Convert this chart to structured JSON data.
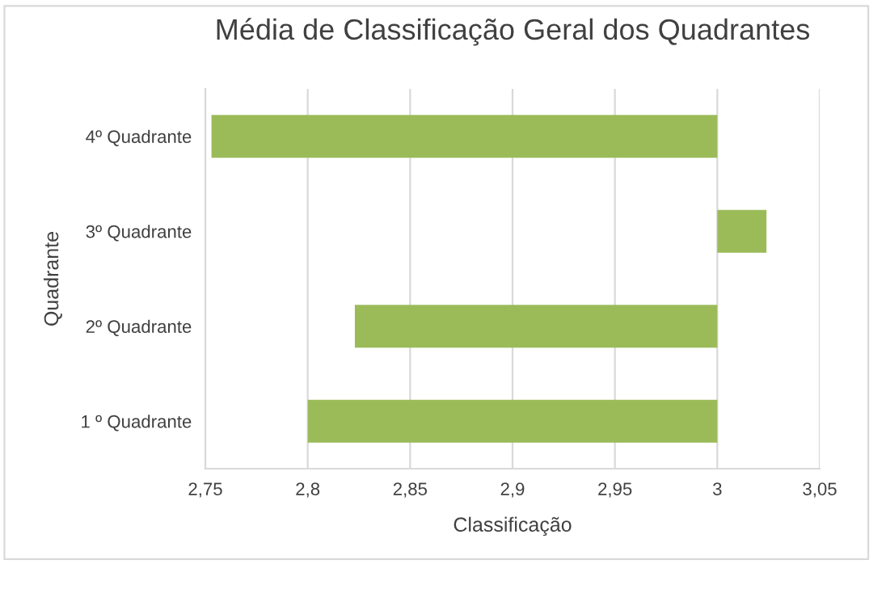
{
  "chart_data": {
    "type": "bar",
    "orientation": "horizontal",
    "title": "Média de Classificação Geral dos Quadrantes",
    "xlabel": "Classificação",
    "ylabel": "Quadrante",
    "categories": [
      "4º Quadrante",
      "3º Quadrante",
      "2º Quadrante",
      "1 º Quadrante"
    ],
    "base": [
      3,
      3,
      3,
      3
    ],
    "values": [
      -0.247,
      0.024,
      -0.177,
      -0.2
    ],
    "color": "#9bbb59",
    "xlim": [
      2.75,
      3.05
    ],
    "xticks": [
      {
        "value": 2.75,
        "label": "2,75"
      },
      {
        "value": 2.8,
        "label": "2,8"
      },
      {
        "value": 2.85,
        "label": "2,85"
      },
      {
        "value": 2.9,
        "label": "2,9"
      },
      {
        "value": 2.95,
        "label": "2,95"
      },
      {
        "value": 3,
        "label": "3"
      },
      {
        "value": 3.05,
        "label": "3,05"
      }
    ],
    "grid": "x",
    "legend": false
  }
}
